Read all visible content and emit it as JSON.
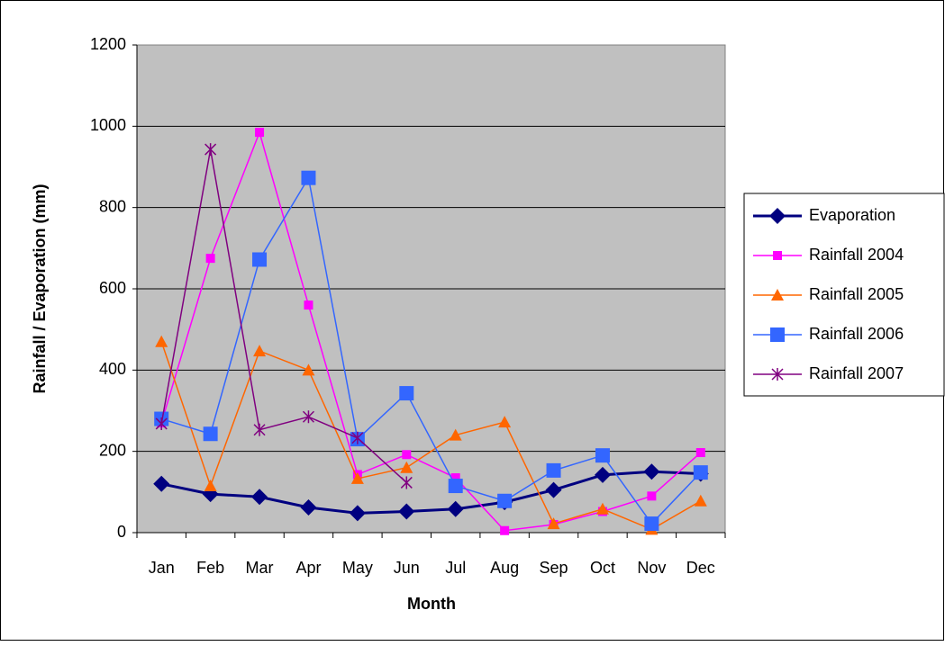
{
  "chart_data": {
    "type": "line",
    "y_label": "Rainfall / Evaporation (mm)",
    "x_label": "Month",
    "categories": [
      "Jan",
      "Feb",
      "Mar",
      "Apr",
      "May",
      "Jun",
      "Jul",
      "Aug",
      "Sep",
      "Oct",
      "Nov",
      "Dec"
    ],
    "ylim": [
      0,
      1200
    ],
    "yticks": [
      0,
      200,
      400,
      600,
      800,
      1000,
      1200
    ],
    "grid": true,
    "legend": "right",
    "series": [
      {
        "name": "Evaporation",
        "color": "#000080",
        "marker": "diamond",
        "line_width": 3,
        "values": [
          120,
          95,
          88,
          62,
          48,
          52,
          58,
          75,
          105,
          142,
          150,
          145
        ]
      },
      {
        "name": "Rainfall 2004",
        "color": "#ff00ff",
        "marker": "square-small",
        "line_width": 1.5,
        "values": [
          270,
          675,
          985,
          560,
          143,
          192,
          135,
          5,
          20,
          52,
          90,
          197
        ]
      },
      {
        "name": "Rainfall 2005",
        "color": "#ff6600",
        "marker": "triangle",
        "line_width": 1.5,
        "values": [
          470,
          115,
          447,
          400,
          133,
          160,
          240,
          272,
          22,
          58,
          8,
          78
        ]
      },
      {
        "name": "Rainfall 2006",
        "color": "#3366ff",
        "marker": "square",
        "line_width": 1.5,
        "values": [
          280,
          243,
          672,
          873,
          230,
          343,
          115,
          78,
          153,
          190,
          22,
          148
        ]
      },
      {
        "name": "Rainfall 2007",
        "color": "#800080",
        "marker": "asterisk",
        "line_width": 1.5,
        "values": [
          268,
          943,
          253,
          285,
          233,
          123,
          null,
          null,
          null,
          null,
          null,
          null
        ]
      }
    ]
  }
}
